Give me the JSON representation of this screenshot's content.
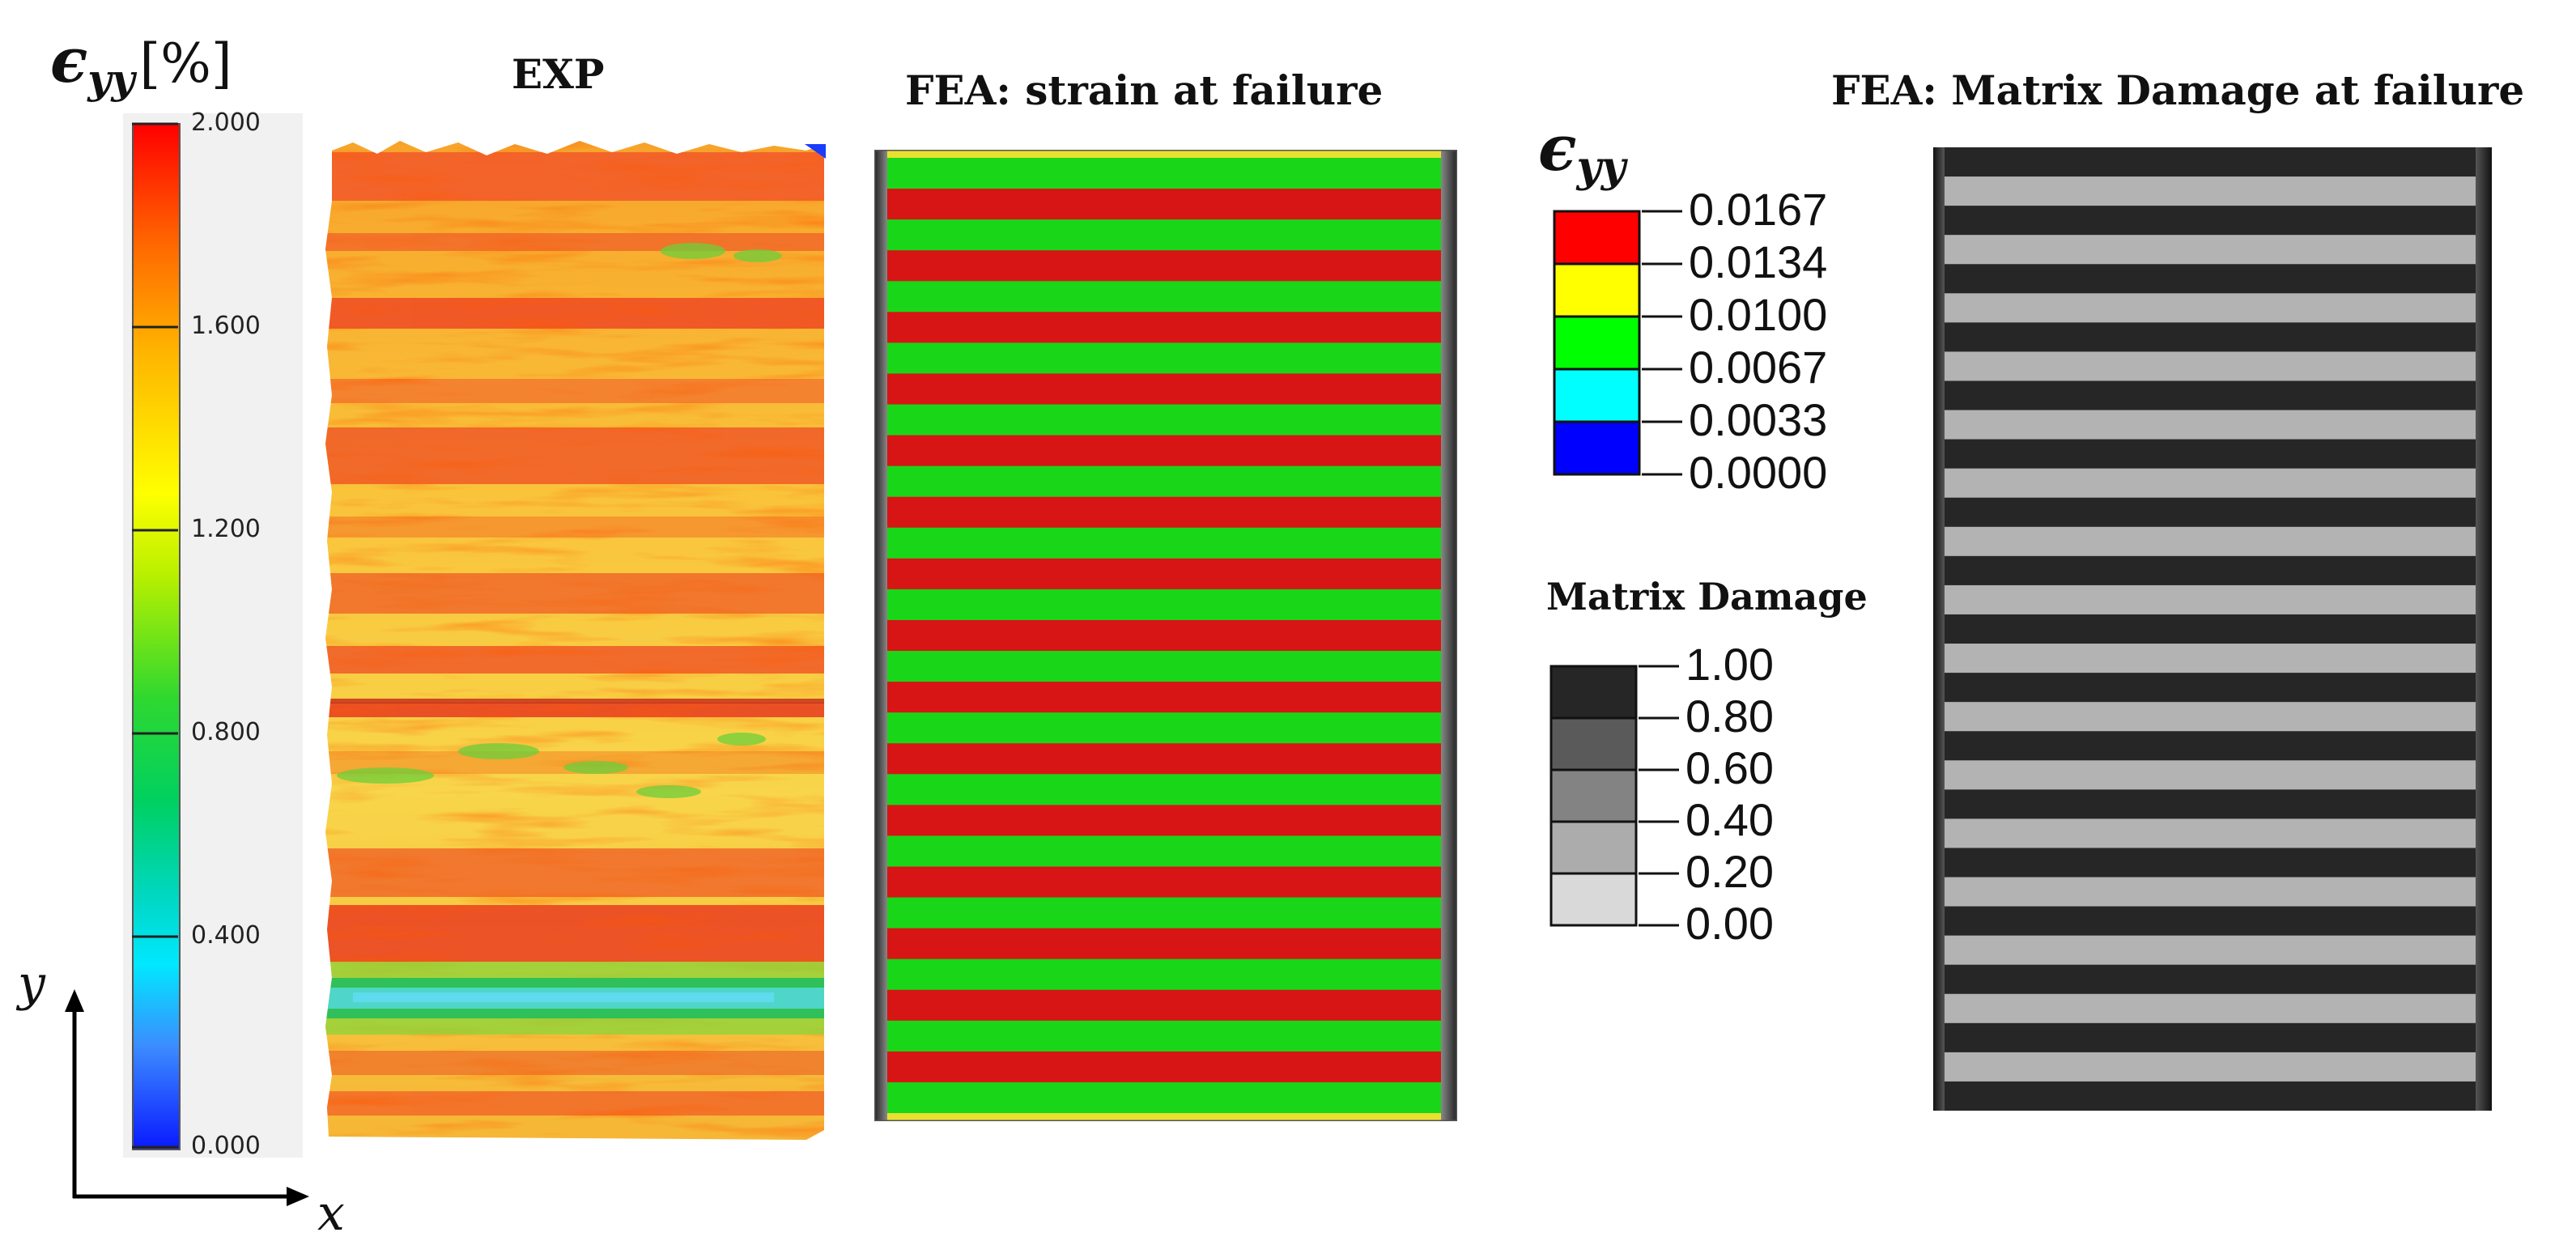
{
  "colorbar": {
    "symbol": "ϵ",
    "subscript": "yy",
    "unit": "[%]",
    "ticks": [
      "2.000",
      "1.600",
      "1.200",
      "0.800",
      "0.400",
      "0.000"
    ]
  },
  "axes": {
    "y_label": "y",
    "x_label": "x"
  },
  "panels": {
    "exp_title": "EXP",
    "fea_strain_title": "FEA: strain at failure",
    "fea_damage_title": "FEA: Matrix Damage at failure"
  },
  "strain_legend": {
    "symbol": "ϵ",
    "subscript": "yy",
    "labels": [
      "0.0167",
      "0.0134",
      "0.0100",
      "0.0067",
      "0.0033",
      "0.0000"
    ],
    "colors": [
      "#ff0000",
      "#ffff00",
      "#00ff00",
      "#00ffff",
      "#0000ff"
    ]
  },
  "damage_legend": {
    "title": "Matrix Damage",
    "labels": [
      "1.00",
      "0.80",
      "0.60",
      "0.40",
      "0.20",
      "0.00"
    ],
    "colors": [
      "#262626",
      "#5a5a5a",
      "#838383",
      "#acacac",
      "#d9d9d9"
    ]
  },
  "colors": {
    "stripe_red": "#d71515",
    "stripe_green": "#19d619",
    "damage_dark": "#262626",
    "damage_light": "#b3b3b3"
  }
}
